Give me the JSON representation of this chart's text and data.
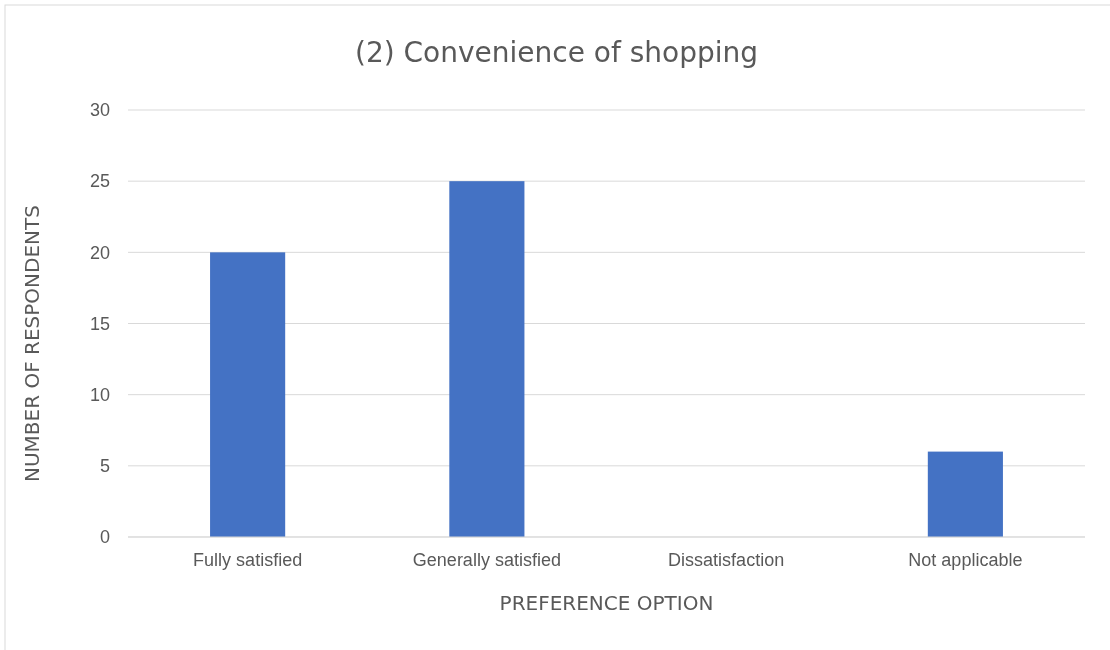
{
  "chart_data": {
    "type": "bar",
    "title": "(2) Convenience of shopping",
    "xlabel": "PREFERENCE OPTION",
    "ylabel": "NUMBER OF RESPONDENTS",
    "categories": [
      "Fully satisfied",
      "Generally satisfied",
      "Dissatisfaction",
      "Not applicable"
    ],
    "values": [
      20,
      25,
      0,
      6
    ],
    "color": "#4472c4",
    "ylim": [
      0,
      30
    ],
    "yticks": [
      0,
      5,
      10,
      15,
      20,
      25,
      30
    ],
    "grid": "y"
  }
}
